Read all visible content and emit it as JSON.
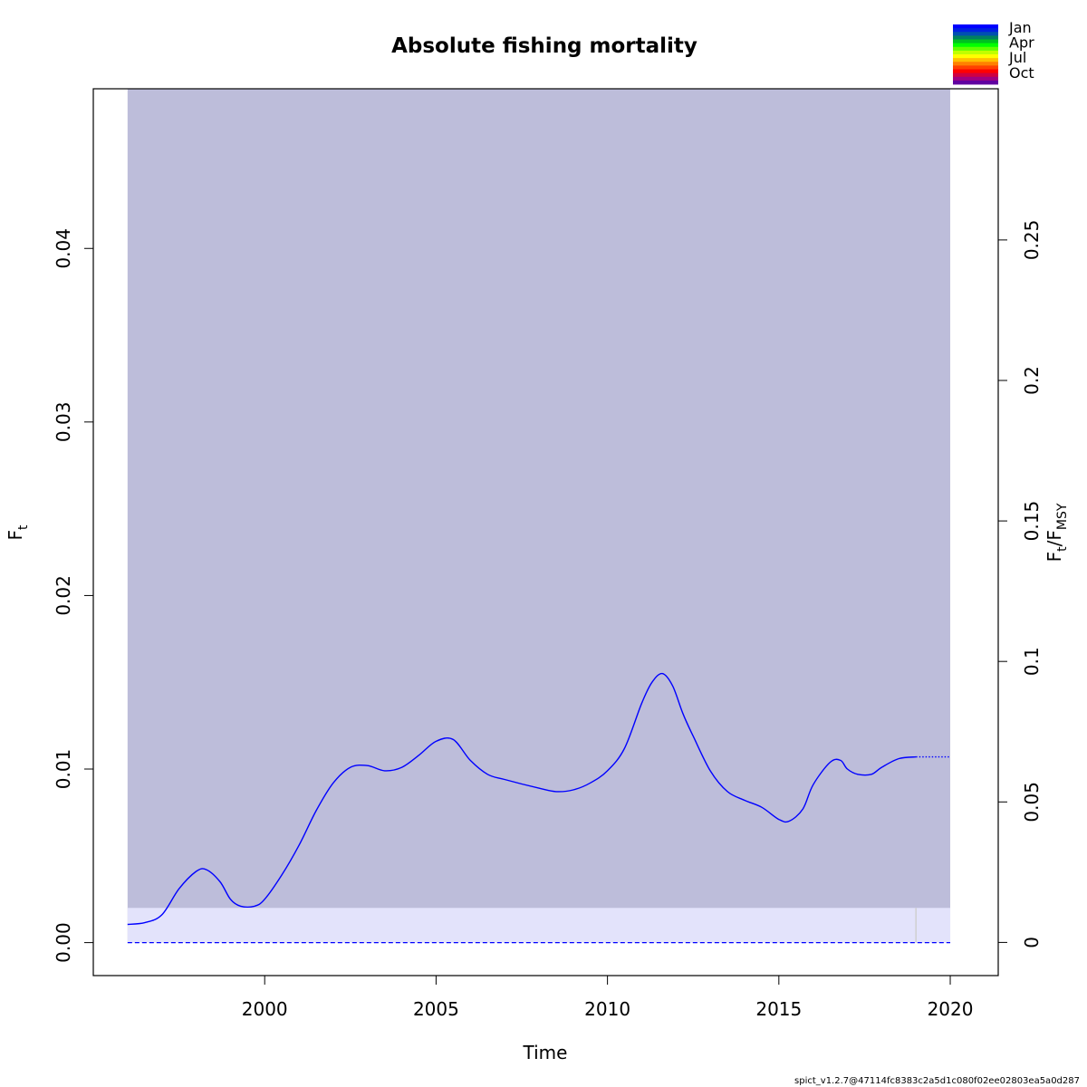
{
  "chart_data": {
    "type": "line",
    "title": "Absolute fishing mortality",
    "xlabel": "Time",
    "ylabel": "F",
    "ylabel_sub": "t",
    "y2label_main": "F",
    "y2label_sub1": "t",
    "y2label_slash": "/F",
    "y2label_sub2": "MSY",
    "xlim": [
      1995,
      2021.4
    ],
    "ylim": [
      -0.0019,
      0.0492
    ],
    "y2lim": [
      -0.0118,
      0.3038
    ],
    "xticks": [
      2000,
      2005,
      2010,
      2015,
      2020
    ],
    "yticks": [
      0.0,
      0.01,
      0.02,
      0.03,
      0.04
    ],
    "ytick_labels": [
      "0.00",
      "0.01",
      "0.02",
      "0.03",
      "0.04"
    ],
    "y2ticks": [
      0,
      0.05,
      0.1,
      0.15,
      0.2,
      0.25
    ],
    "y2tick_labels": [
      "0",
      "0.05",
      "0.1",
      "0.15",
      "0.2",
      "0.25"
    ],
    "ci_band": {
      "x_start": 1996.0,
      "x_end": 2020.0,
      "lower": 0.0,
      "upper": 0.0492,
      "color": "#bdbdda"
    },
    "fmsy_band": {
      "x_start": 1996.0,
      "x_end": 2020.0,
      "lower": 0.0,
      "upper": 0.002,
      "color": "#e3e3fb"
    },
    "reference_line": {
      "value": 0.0,
      "style": "dashed",
      "color": "#0000ff"
    },
    "vline": {
      "x": 2019.0,
      "color": "#d0d0d0"
    },
    "series": [
      {
        "style": "solid",
        "color": "#0000ff",
        "x": [
          1996.0,
          1996.5,
          1997.0,
          1997.5,
          1998.0,
          1998.3,
          1998.7,
          1999.0,
          1999.3,
          1999.7,
          2000.0,
          2000.5,
          2001.0,
          2001.5,
          2002.0,
          2002.5,
          2003.0,
          2003.5,
          2004.0,
          2004.5,
          2005.0,
          2005.5,
          2006.0,
          2006.5,
          2007.0,
          2008.0,
          2008.5,
          2009.0,
          2009.5,
          2010.0,
          2010.5,
          2011.0,
          2011.3,
          2011.6,
          2011.9,
          2012.2,
          2012.5,
          2013.0,
          2013.5,
          2014.0,
          2014.5,
          2015.0,
          2015.3,
          2015.7,
          2016.0,
          2016.5,
          2016.8,
          2017.0,
          2017.3,
          2017.7,
          2018.0,
          2018.5,
          2019.0
        ],
        "y": [
          0.00105,
          0.00115,
          0.0016,
          0.0031,
          0.0041,
          0.0042,
          0.0035,
          0.0025,
          0.0021,
          0.0021,
          0.0025,
          0.0039,
          0.0056,
          0.0076,
          0.0092,
          0.0101,
          0.0102,
          0.0099,
          0.0101,
          0.0108,
          0.0116,
          0.0117,
          0.0105,
          0.0097,
          0.0094,
          0.0089,
          0.0087,
          0.0088,
          0.0092,
          0.0099,
          0.0112,
          0.0138,
          0.015,
          0.0155,
          0.0148,
          0.0132,
          0.0119,
          0.0099,
          0.0087,
          0.0082,
          0.0078,
          0.0071,
          0.007,
          0.0077,
          0.0091,
          0.0104,
          0.0105,
          0.01,
          0.0097,
          0.0097,
          0.0101,
          0.0106,
          0.0107
        ]
      },
      {
        "style": "dotted",
        "color": "#0000ff",
        "x": [
          2019.0,
          2020.0
        ],
        "y": [
          0.0107,
          0.0107
        ]
      }
    ],
    "legend": {
      "placement": "top-right",
      "labels": [
        "Jan",
        "Apr",
        "Jul",
        "Oct"
      ],
      "colors": [
        "#0000ff",
        "#0020e0",
        "#0050b0",
        "#008060",
        "#00c020",
        "#00ff00",
        "#60ff00",
        "#c0ff00",
        "#ffff00",
        "#ffc000",
        "#ff8000",
        "#ff4000",
        "#ff0000",
        "#d00040",
        "#a00080",
        "#6000a0"
      ]
    }
  },
  "footer": "spict_v1.2.7@47114fc8383c2a5d1c080f02ee02803ea5a0d287"
}
